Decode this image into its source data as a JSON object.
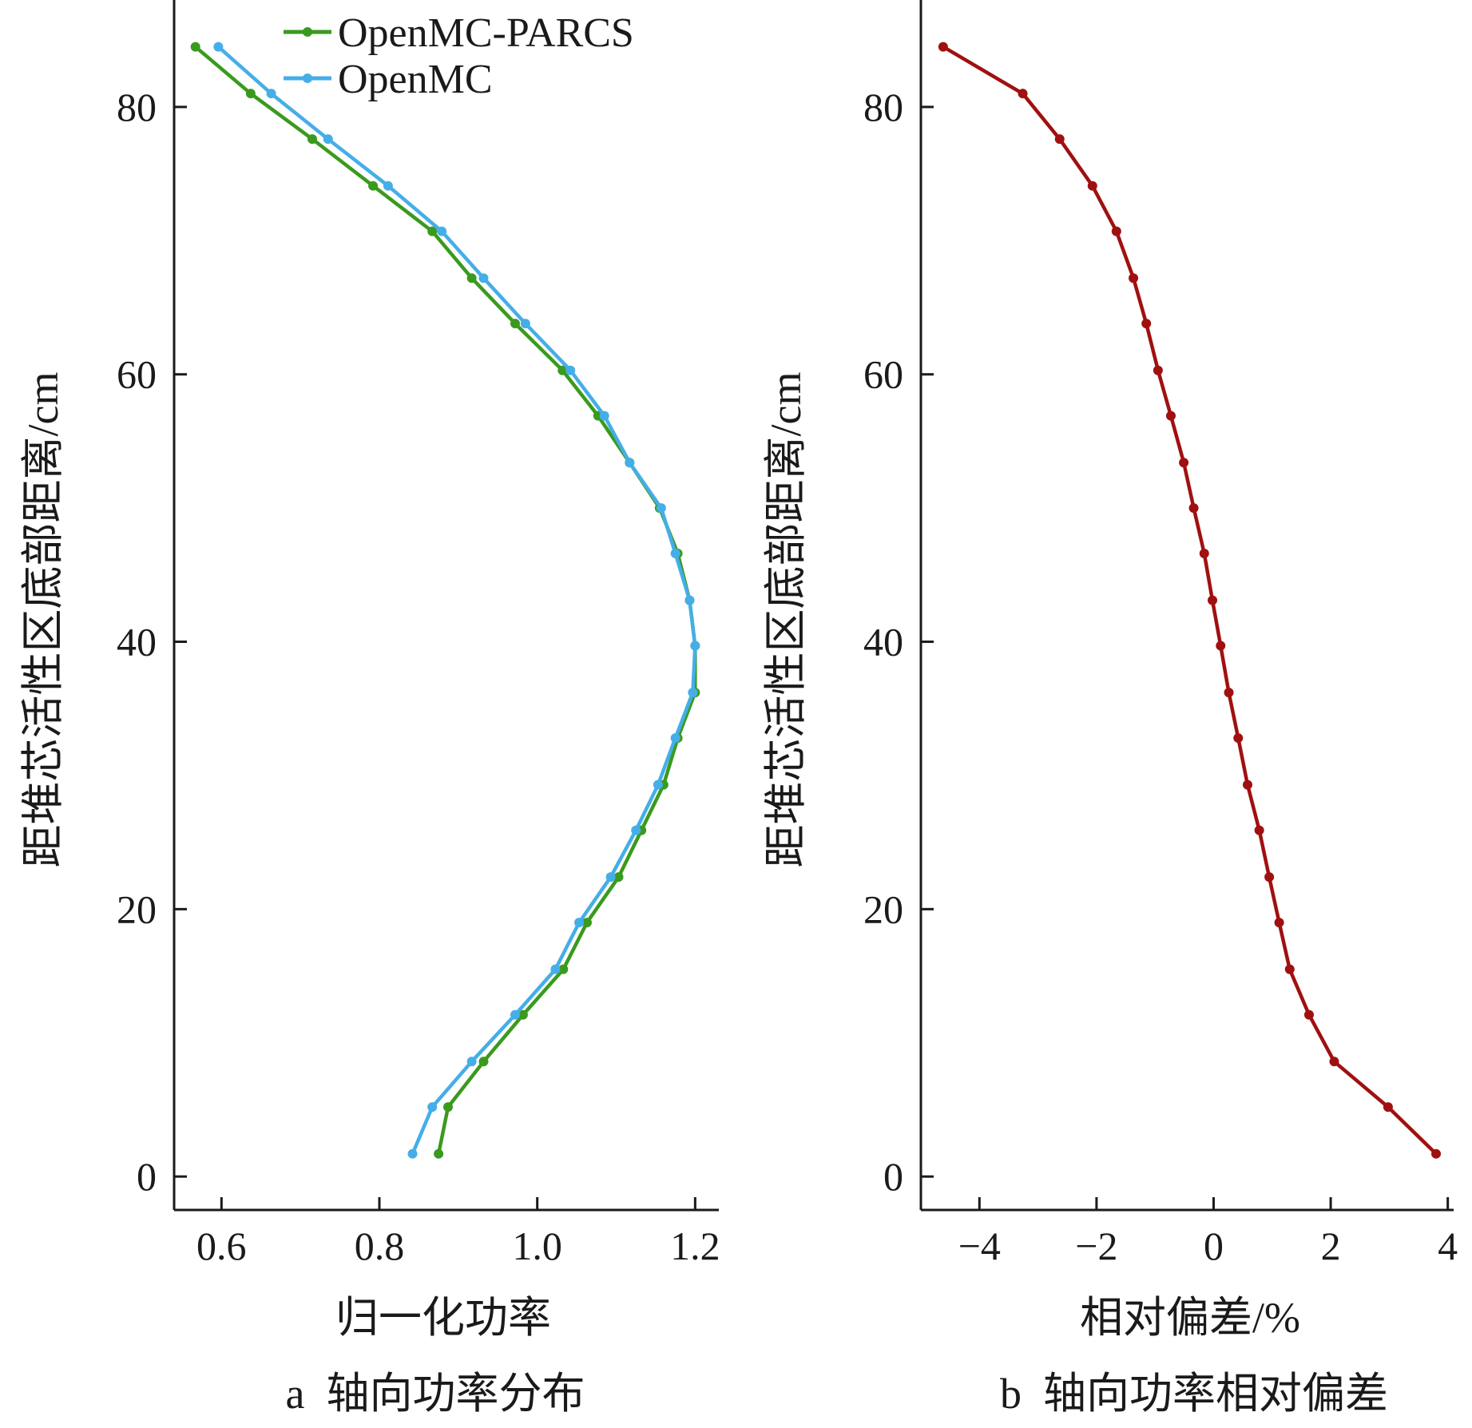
{
  "chart_data": [
    {
      "type": "line",
      "caption": "a  轴向功率分布",
      "xlabel": "归一化功率",
      "ylabel": "距堆芯活性区底部距离/cm",
      "xlim": [
        0.54,
        1.23
      ],
      "ylim": [
        -2.5,
        88
      ],
      "xticks": [
        0.6,
        0.8,
        1.0,
        1.2
      ],
      "xtick_labels": [
        "0.6",
        "0.8",
        "1.0",
        "1.2"
      ],
      "yticks": [
        0,
        20,
        40,
        60,
        80
      ],
      "ytick_labels": [
        "0",
        "20",
        "40",
        "60",
        "80"
      ],
      "legend_position": "top",
      "grid": false,
      "series": [
        {
          "name": "OpenMC-PARCS",
          "color": "#3a9a1e",
          "x": [
            0.875,
            0.887,
            0.932,
            0.982,
            1.033,
            1.063,
            1.103,
            1.132,
            1.16,
            1.178,
            1.2,
            1.2,
            1.193,
            1.178,
            1.155,
            1.117,
            1.077,
            1.032,
            0.972,
            0.917,
            0.867,
            0.792,
            0.715,
            0.637,
            0.567
          ],
          "y": [
            1.7,
            5.2,
            8.6,
            12.1,
            15.5,
            19.0,
            22.4,
            25.9,
            29.3,
            32.8,
            36.2,
            39.7,
            43.1,
            46.6,
            50.0,
            53.4,
            56.9,
            60.3,
            63.8,
            67.2,
            70.7,
            74.1,
            77.6,
            81.0,
            84.5
          ]
        },
        {
          "name": "OpenMC",
          "color": "#45aee8",
          "x": [
            0.842,
            0.867,
            0.917,
            0.972,
            1.023,
            1.053,
            1.093,
            1.125,
            1.153,
            1.175,
            1.197,
            1.2,
            1.193,
            1.175,
            1.157,
            1.117,
            1.085,
            1.042,
            0.985,
            0.932,
            0.879,
            0.811,
            0.735,
            0.663,
            0.596
          ],
          "y": [
            1.7,
            5.2,
            8.6,
            12.1,
            15.5,
            19.0,
            22.4,
            25.9,
            29.3,
            32.8,
            36.2,
            39.7,
            43.1,
            46.6,
            50.0,
            53.4,
            56.9,
            60.3,
            63.8,
            67.2,
            70.7,
            74.1,
            77.6,
            81.0,
            84.5
          ]
        }
      ]
    },
    {
      "type": "line",
      "caption": "b  轴向功率相对偏差",
      "xlabel": "相对偏差/%",
      "ylabel": "距堆芯活性区底部距离/cm",
      "xlim": [
        -5.0,
        4.1
      ],
      "ylim": [
        -2.5,
        88
      ],
      "xticks": [
        -4,
        -2,
        0,
        2,
        4
      ],
      "xtick_labels": [
        "−4",
        "−2",
        "0",
        "2",
        "4"
      ],
      "yticks": [
        0,
        20,
        40,
        60,
        80
      ],
      "ytick_labels": [
        "0",
        "20",
        "40",
        "60",
        "80"
      ],
      "grid": false,
      "series": [
        {
          "color": "#a01010",
          "x": [
            3.8,
            2.98,
            2.06,
            1.63,
            1.3,
            1.12,
            0.95,
            0.78,
            0.58,
            0.42,
            0.26,
            0.12,
            -0.02,
            -0.16,
            -0.34,
            -0.51,
            -0.73,
            -0.95,
            -1.15,
            -1.37,
            -1.66,
            -2.07,
            -2.63,
            -3.26,
            -4.62
          ],
          "y": [
            1.7,
            5.2,
            8.6,
            12.1,
            15.5,
            19.0,
            22.4,
            25.9,
            29.3,
            32.8,
            36.2,
            39.7,
            43.1,
            46.6,
            50.0,
            53.4,
            56.9,
            60.3,
            63.8,
            67.2,
            70.7,
            74.1,
            77.6,
            81.0,
            84.5
          ]
        }
      ]
    }
  ]
}
